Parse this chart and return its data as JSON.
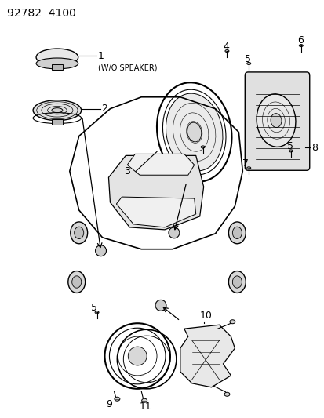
{
  "title": "92782  4100",
  "background_color": "#ffffff",
  "line_color": "#000000",
  "fig_width": 4.14,
  "fig_height": 5.33,
  "dpi": 100
}
